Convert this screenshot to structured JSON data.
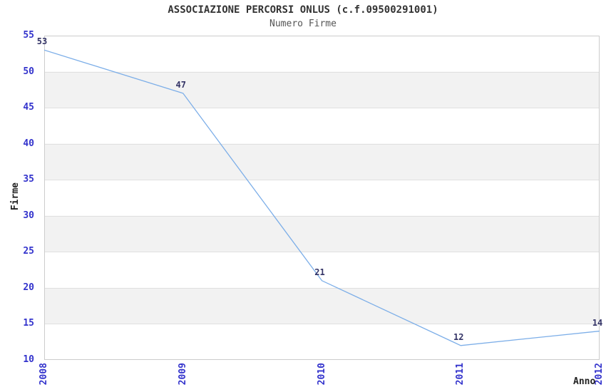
{
  "chart_data": {
    "type": "line",
    "title": "ASSOCIAZIONE PERCORSI ONLUS (c.f.09500291001)",
    "subtitle": "Numero Firme",
    "xlabel": "Anno",
    "ylabel": "Firme",
    "categories": [
      "2008",
      "2009",
      "2010",
      "2011",
      "2012"
    ],
    "values": [
      53,
      47,
      21,
      12,
      14
    ],
    "series": [
      {
        "name": "Numero Firme",
        "values": [
          53,
          47,
          21,
          12,
          14
        ]
      }
    ],
    "ylim": [
      10,
      55
    ],
    "yticks": [
      10,
      15,
      20,
      25,
      30,
      35,
      40,
      45,
      50,
      55
    ],
    "grid": "alternating-horizontal-bands",
    "legend": "none",
    "data_labels_shown": true,
    "colors": {
      "line": "#7caee8",
      "axis_tick_label": "#3333cc",
      "data_label": "#333366",
      "band_fill": "#f2f2f2",
      "gridline": "#e0e0e0",
      "plot_border": "#cccccc",
      "title": "#333333",
      "subtitle": "#555555",
      "axis_title": "#222222",
      "background": "#ffffff"
    }
  }
}
